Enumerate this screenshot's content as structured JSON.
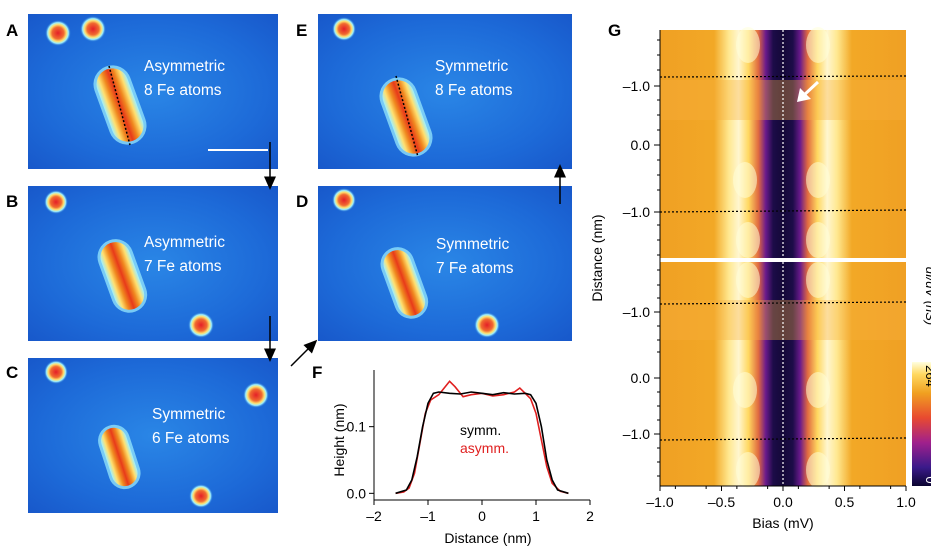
{
  "panel_labels": [
    "A",
    "B",
    "C",
    "D",
    "E",
    "F",
    "G"
  ],
  "stm_panels": [
    {
      "id": "A",
      "line1": "Asymmetric",
      "line2": "8 Fe atoms"
    },
    {
      "id": "B",
      "line1": "Asymmetric",
      "line2": "7 Fe atoms"
    },
    {
      "id": "C",
      "line1": "Symmetric",
      "line2": "6 Fe atoms"
    },
    {
      "id": "D",
      "line1": "Symmetric",
      "line2": "7 Fe atoms"
    },
    {
      "id": "E",
      "line1": "Symmetric",
      "line2": "8 Fe atoms"
    }
  ],
  "colors": {
    "stm_background": "#1f6fd6",
    "stm_deep": "#1649c4",
    "adatom_core": "#e8242a",
    "symm_line": "#000000",
    "asymm_line": "#e02020",
    "map_orange": "#f0a020",
    "map_yellow": "#ffffa0",
    "map_dark": "#160b3c",
    "map_purple": "#6a1a8c"
  },
  "chart_data": [
    {
      "type": "line",
      "panel": "F",
      "xlabel": "Distance (nm)",
      "ylabel": "Height (nm)",
      "xlim": [
        -2.0,
        2.0
      ],
      "ylim": [
        -0.01,
        0.185
      ],
      "xticks": [
        "–2",
        "–1",
        "0",
        "1",
        "2"
      ],
      "yticks": [
        "0.0",
        "0.1"
      ],
      "series": [
        {
          "name": "symm.",
          "x": [
            -1.6,
            -1.4,
            -1.3,
            -1.2,
            -1.1,
            -1.0,
            -0.9,
            -0.8,
            -0.6,
            -0.4,
            -0.2,
            0.0,
            0.2,
            0.4,
            0.6,
            0.8,
            0.9,
            1.0,
            1.1,
            1.2,
            1.3,
            1.4,
            1.6
          ],
          "y": [
            0.0,
            0.005,
            0.02,
            0.055,
            0.1,
            0.135,
            0.15,
            0.152,
            0.15,
            0.149,
            0.152,
            0.15,
            0.148,
            0.151,
            0.149,
            0.15,
            0.148,
            0.135,
            0.1,
            0.05,
            0.02,
            0.005,
            0.0
          ]
        },
        {
          "name": "asymm.",
          "x": [
            -1.6,
            -1.45,
            -1.35,
            -1.25,
            -1.15,
            -1.05,
            -0.95,
            -0.8,
            -0.7,
            -0.6,
            -0.5,
            -0.35,
            -0.2,
            0.0,
            0.2,
            0.4,
            0.6,
            0.7,
            0.8,
            0.9,
            1.0,
            1.1,
            1.2,
            1.3,
            1.45,
            1.6
          ],
          "y": [
            0.0,
            0.002,
            0.008,
            0.03,
            0.075,
            0.12,
            0.14,
            0.148,
            0.158,
            0.168,
            0.16,
            0.145,
            0.148,
            0.15,
            0.146,
            0.148,
            0.152,
            0.158,
            0.15,
            0.142,
            0.12,
            0.08,
            0.04,
            0.015,
            0.003,
            0.0
          ]
        }
      ]
    },
    {
      "type": "heatmap",
      "panel": "G",
      "xlabel": "Bias (mV)",
      "ylabel": "Distance (nm)",
      "xlim": [
        -1.0,
        1.0
      ],
      "xticks": [
        "–1.0",
        "–0.5",
        "0.0",
        "0.5",
        "1.0"
      ],
      "yticks_top": [
        "–1.0",
        "0.0",
        "–1.0"
      ],
      "yticks_bottom": [
        "–1.0",
        "0.0",
        "–1.0"
      ],
      "colorbar": {
        "label": "dI/dV (nS)",
        "max_label": "264",
        "min_label": "0",
        "min": 0,
        "max": 264
      }
    }
  ]
}
